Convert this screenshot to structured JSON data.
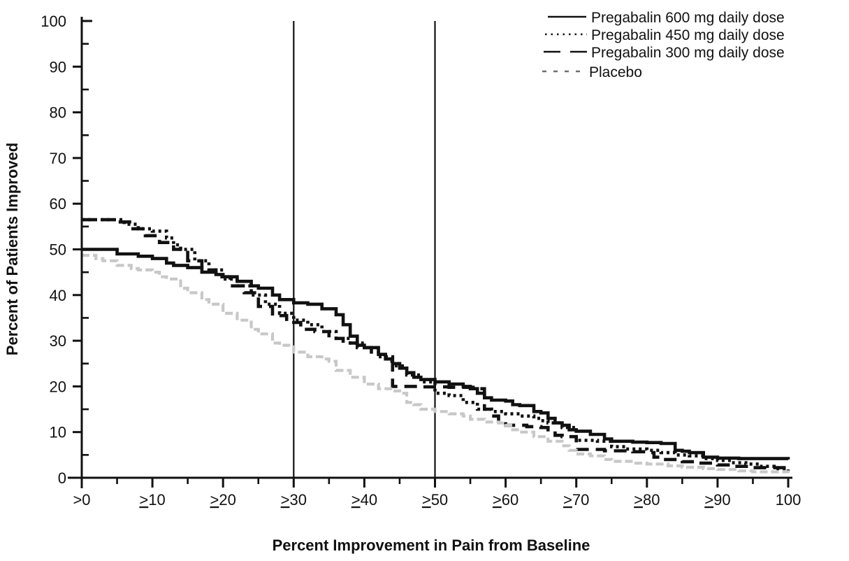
{
  "chart_data": {
    "type": "line",
    "step": "after",
    "title": "",
    "xlabel": "Percent Improvement in Pain from Baseline",
    "ylabel": "Percent of Patients Improved",
    "xlim": [
      0,
      100
    ],
    "ylim": [
      0,
      100
    ],
    "grid": false,
    "legend_position": "top-right",
    "x_tick_labels": [
      ">0",
      "≥10",
      "≥20",
      "≥30",
      "≥40",
      "≥50",
      "≥60",
      "≥70",
      "≥80",
      "≥90",
      "100"
    ],
    "x_tick_values": [
      0,
      10,
      20,
      30,
      40,
      50,
      60,
      70,
      80,
      90,
      100
    ],
    "x_minor_ticks": [
      5,
      15,
      25,
      35,
      45,
      55,
      65,
      75,
      85,
      95
    ],
    "y_tick_labels": [
      "0",
      "10",
      "20",
      "30",
      "40",
      "50",
      "60",
      "70",
      "80",
      "90",
      "100"
    ],
    "y_tick_values": [
      0,
      10,
      20,
      30,
      40,
      50,
      60,
      70,
      80,
      90,
      100
    ],
    "y_minor_ticks": [
      5,
      15,
      25,
      35,
      45,
      55,
      65,
      75,
      85,
      95
    ],
    "reference_lines_x": [
      30,
      50
    ],
    "colors": {
      "pregabalin": "#111111",
      "placebo": "#c6c9c6"
    },
    "series": [
      {
        "name": "Pregabalin 600 mg daily dose",
        "style": "solid",
        "color": "#111111",
        "width": 4.6,
        "dash": "",
        "points": [
          [
            0,
            50
          ],
          [
            2,
            50
          ],
          [
            5,
            49
          ],
          [
            8,
            48.5
          ],
          [
            10,
            48
          ],
          [
            12,
            47
          ],
          [
            13,
            46.5
          ],
          [
            15,
            46
          ],
          [
            17,
            45
          ],
          [
            19,
            44.5
          ],
          [
            20,
            44
          ],
          [
            22,
            43
          ],
          [
            24,
            42
          ],
          [
            25,
            41.5
          ],
          [
            27,
            40
          ],
          [
            28,
            39
          ],
          [
            30,
            38.3
          ],
          [
            32,
            38
          ],
          [
            34,
            37
          ],
          [
            36,
            35.7
          ],
          [
            37,
            33.5
          ],
          [
            38,
            31
          ],
          [
            39,
            29
          ],
          [
            40,
            28.5
          ],
          [
            42,
            27
          ],
          [
            43,
            26
          ],
          [
            44,
            25
          ],
          [
            45,
            24
          ],
          [
            46,
            23
          ],
          [
            47,
            22
          ],
          [
            48,
            21.5
          ],
          [
            50,
            21
          ],
          [
            52,
            20.5
          ],
          [
            54,
            20
          ],
          [
            55,
            19.5
          ],
          [
            56,
            18.5
          ],
          [
            57,
            17.5
          ],
          [
            58,
            17
          ],
          [
            60,
            16.8
          ],
          [
            61,
            16
          ],
          [
            62,
            15.8
          ],
          [
            64,
            14.5
          ],
          [
            65,
            14.2
          ],
          [
            66,
            13
          ],
          [
            67,
            12
          ],
          [
            68,
            11.5
          ],
          [
            69,
            10.5
          ],
          [
            70,
            10.2
          ],
          [
            72,
            9.5
          ],
          [
            74,
            8.5
          ],
          [
            75,
            8
          ],
          [
            78,
            7.8
          ],
          [
            80,
            7.7
          ],
          [
            82,
            7.5
          ],
          [
            84,
            6
          ],
          [
            85,
            5.8
          ],
          [
            86,
            5.5
          ],
          [
            88,
            4.5
          ],
          [
            90,
            4.3
          ],
          [
            93,
            4.2
          ],
          [
            100,
            4
          ]
        ]
      },
      {
        "name": "Pregabalin 450 mg daily dose",
        "style": "dotted",
        "color": "#111111",
        "width": 4.6,
        "dash": "4 5",
        "points": [
          [
            0,
            56.5
          ],
          [
            4,
            56.5
          ],
          [
            6,
            55.5
          ],
          [
            8,
            54.5
          ],
          [
            10,
            54
          ],
          [
            12,
            52.5
          ],
          [
            13,
            51
          ],
          [
            14,
            50
          ],
          [
            16,
            47.5
          ],
          [
            18,
            45.5
          ],
          [
            20,
            43.5
          ],
          [
            22,
            42
          ],
          [
            24,
            40
          ],
          [
            26,
            38
          ],
          [
            28,
            36
          ],
          [
            30,
            34.5
          ],
          [
            32,
            33.5
          ],
          [
            34,
            32
          ],
          [
            36,
            30.5
          ],
          [
            38,
            29.5
          ],
          [
            40,
            28.5
          ],
          [
            42,
            26.5
          ],
          [
            44,
            24.5
          ],
          [
            46,
            22.5
          ],
          [
            48,
            21
          ],
          [
            50,
            18.5
          ],
          [
            52,
            18
          ],
          [
            54,
            16.5
          ],
          [
            56,
            15
          ],
          [
            58,
            14.5
          ],
          [
            60,
            14
          ],
          [
            62,
            13.5
          ],
          [
            64,
            13
          ],
          [
            65,
            12.5
          ],
          [
            66,
            12
          ],
          [
            68,
            11
          ],
          [
            70,
            8.2
          ],
          [
            73,
            8
          ],
          [
            75,
            6.8
          ],
          [
            77,
            6.3
          ],
          [
            80,
            6
          ],
          [
            82,
            5.5
          ],
          [
            84,
            5
          ],
          [
            86,
            4.8
          ],
          [
            88,
            4.2
          ],
          [
            90,
            3.8
          ],
          [
            92,
            3.3
          ],
          [
            94,
            3
          ],
          [
            96,
            2.5
          ],
          [
            98,
            2
          ],
          [
            100,
            1.5
          ]
        ]
      },
      {
        "name": "Pregabalin 300 mg daily dose",
        "style": "dashed",
        "color": "#111111",
        "width": 4.6,
        "dash": "18 10",
        "points": [
          [
            0,
            56.5
          ],
          [
            3,
            56.5
          ],
          [
            5,
            56
          ],
          [
            7,
            54.5
          ],
          [
            9,
            53
          ],
          [
            11,
            51.5
          ],
          [
            13,
            50
          ],
          [
            15,
            47.5
          ],
          [
            17,
            45.5
          ],
          [
            19,
            44
          ],
          [
            21,
            42
          ],
          [
            23,
            40.5
          ],
          [
            25,
            37.5
          ],
          [
            27,
            35.5
          ],
          [
            29,
            34
          ],
          [
            31,
            32.5
          ],
          [
            33,
            32
          ],
          [
            35,
            30.5
          ],
          [
            37,
            29.5
          ],
          [
            39,
            28.5
          ],
          [
            41,
            27
          ],
          [
            43,
            25.5
          ],
          [
            44,
            20
          ],
          [
            48,
            19.9
          ],
          [
            52,
            19.8
          ],
          [
            56,
            19.5
          ],
          [
            57,
            15
          ],
          [
            58,
            13.5
          ],
          [
            59,
            12.5
          ],
          [
            60,
            11.5
          ],
          [
            63,
            11.2
          ],
          [
            65,
            11
          ],
          [
            66,
            9.8
          ],
          [
            67,
            9.3
          ],
          [
            68,
            9
          ],
          [
            70,
            6.2
          ],
          [
            74,
            5.9
          ],
          [
            78,
            5.7
          ],
          [
            80,
            5.5
          ],
          [
            81,
            4.5
          ],
          [
            82,
            4
          ],
          [
            85,
            3.5
          ],
          [
            87,
            3.2
          ],
          [
            90,
            2.8
          ],
          [
            92,
            2.5
          ],
          [
            95,
            2.2
          ],
          [
            100,
            2
          ]
        ]
      },
      {
        "name": "Placebo",
        "style": "dashed-gray",
        "color": "#c6c9c6",
        "width": 4.2,
        "dash": "11 5",
        "points": [
          [
            0,
            48.7
          ],
          [
            2,
            48
          ],
          [
            3,
            47.5
          ],
          [
            5,
            46.5
          ],
          [
            7,
            45.8
          ],
          [
            8,
            45.5
          ],
          [
            10,
            45
          ],
          [
            11,
            44
          ],
          [
            12,
            43.5
          ],
          [
            14,
            41.5
          ],
          [
            15,
            40.5
          ],
          [
            17,
            39
          ],
          [
            18,
            38
          ],
          [
            20,
            36
          ],
          [
            22,
            34.5
          ],
          [
            24,
            32.5
          ],
          [
            25,
            31.5
          ],
          [
            27,
            29.5
          ],
          [
            28,
            29
          ],
          [
            30,
            27.5
          ],
          [
            32,
            26.5
          ],
          [
            34,
            26
          ],
          [
            35,
            25.5
          ],
          [
            36,
            23.5
          ],
          [
            38,
            22
          ],
          [
            40,
            20.5
          ],
          [
            42,
            19.5
          ],
          [
            44,
            19
          ],
          [
            45,
            18.5
          ],
          [
            46,
            16.5
          ],
          [
            47,
            16
          ],
          [
            48,
            15
          ],
          [
            50,
            14.5
          ],
          [
            52,
            14
          ],
          [
            54,
            13.5
          ],
          [
            55,
            12.8
          ],
          [
            57,
            12.2
          ],
          [
            59,
            12
          ],
          [
            60,
            11.5
          ],
          [
            61,
            10.5
          ],
          [
            62,
            10
          ],
          [
            64,
            9
          ],
          [
            66,
            8
          ],
          [
            68,
            7
          ],
          [
            69,
            6
          ],
          [
            70,
            5.2
          ],
          [
            72,
            4.8
          ],
          [
            74,
            4
          ],
          [
            75,
            3.6
          ],
          [
            78,
            3.2
          ],
          [
            80,
            3
          ],
          [
            83,
            2.6
          ],
          [
            85,
            2.3
          ],
          [
            88,
            2
          ],
          [
            90,
            1.8
          ],
          [
            93,
            1.5
          ],
          [
            95,
            1.3
          ],
          [
            100,
            1
          ]
        ]
      }
    ]
  }
}
